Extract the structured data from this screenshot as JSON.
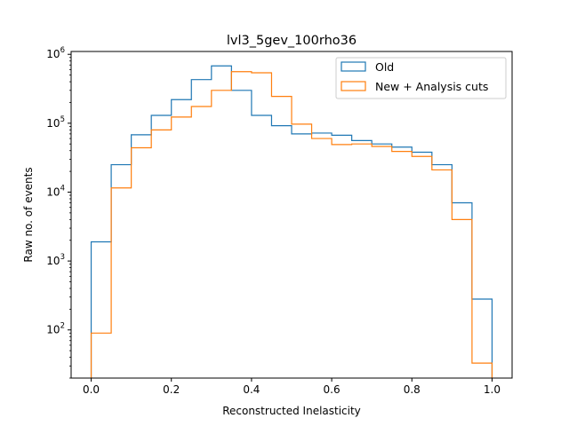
{
  "chart_data": {
    "type": "histogram",
    "title": "lvl3_5gev_100rho36",
    "xlabel": "Reconstructed Inelasticity",
    "ylabel": "Raw no. of events",
    "xlim": [
      -0.05,
      1.05
    ],
    "ylim": [
      20,
      1100000
    ],
    "yscale": "log",
    "grid": false,
    "legend_loc": "top-right",
    "x_ticks": [
      0.0,
      0.2,
      0.4,
      0.6,
      0.8,
      1.0
    ],
    "x_tick_labels": [
      "0.0",
      "0.2",
      "0.4",
      "0.6",
      "0.8",
      "1.0"
    ],
    "y_ticks": [
      {
        "value": 100,
        "base": "10",
        "exp": "2"
      },
      {
        "value": 1000,
        "base": "10",
        "exp": "3"
      },
      {
        "value": 10000,
        "base": "10",
        "exp": "4"
      },
      {
        "value": 100000,
        "base": "10",
        "exp": "5"
      },
      {
        "value": 1000000,
        "base": "10",
        "exp": "6"
      }
    ],
    "bin_edges": [
      0.0,
      0.05,
      0.1,
      0.15,
      0.2,
      0.25,
      0.3,
      0.35,
      0.4,
      0.45,
      0.5,
      0.55,
      0.6,
      0.65,
      0.7,
      0.75,
      0.8,
      0.85,
      0.9,
      0.95,
      1.0
    ],
    "series": [
      {
        "name": "Old",
        "color": "#1f77b4",
        "values": [
          1900,
          25000,
          68000,
          130000,
          220000,
          430000,
          680000,
          300000,
          130000,
          92000,
          70000,
          72000,
          67000,
          56000,
          50000,
          45000,
          38000,
          25000,
          7000,
          280
        ]
      },
      {
        "name": "New + Analysis cuts",
        "color": "#ff7f0e",
        "values": [
          90,
          11500,
          44000,
          80000,
          123000,
          175000,
          300000,
          560000,
          540000,
          245000,
          97000,
          60000,
          49000,
          50000,
          46000,
          39000,
          33000,
          21000,
          4000,
          33
        ]
      }
    ]
  }
}
